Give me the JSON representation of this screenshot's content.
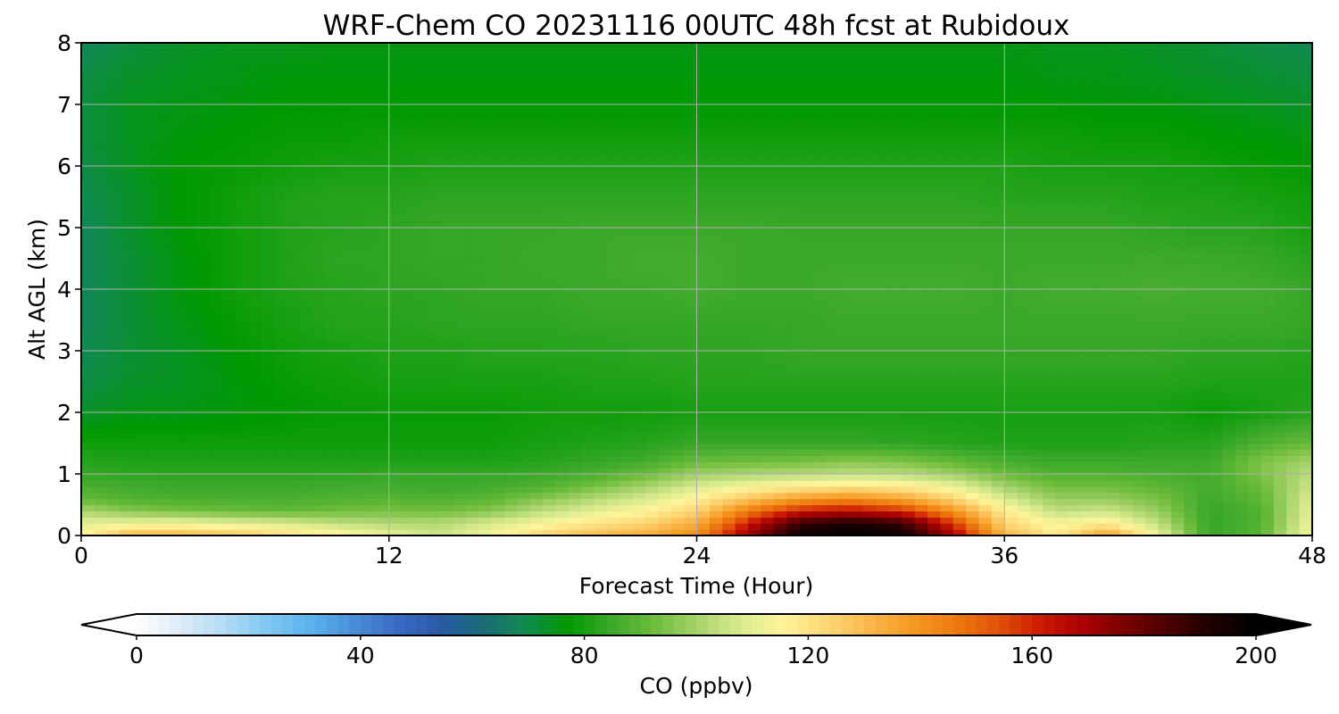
{
  "chart_data": {
    "type": "heatmap",
    "title": "WRF-Chem CO  20231116 00UTC 48h fcst at Rubidoux",
    "xlabel": "Forecast Time (Hour)",
    "ylabel": "Alt AGL (km)",
    "xlim": [
      0,
      48
    ],
    "ylim": [
      0,
      8
    ],
    "x_ticks": [
      0,
      12,
      24,
      36,
      48
    ],
    "y_ticks": [
      0,
      1,
      2,
      3,
      4,
      5,
      6,
      7,
      8
    ],
    "grid": true,
    "colorbar": {
      "label": "CO  (ppbv)",
      "range": [
        0,
        200
      ],
      "ticks": [
        0,
        40,
        80,
        120,
        160,
        200
      ],
      "extend": "both",
      "colors": [
        "#ffffff",
        "#dcecf8",
        "#b3dcf4",
        "#83c8f2",
        "#5ab4ee",
        "#4a90d8",
        "#3a6cc4",
        "#2a5aa8",
        "#1a6a78",
        "#118a50",
        "#009900",
        "#3aa82a",
        "#6cbc3a",
        "#a6d26a",
        "#d8ea8e",
        "#fff59a",
        "#fdd878",
        "#fbb84c",
        "#f59a22",
        "#ee7a10",
        "#e05408",
        "#cc1a00",
        "#a80000",
        "#780000",
        "#480000",
        "#1e0000",
        "#000000"
      ]
    },
    "x": [
      0,
      2,
      4,
      6,
      8,
      10,
      12,
      14,
      16,
      18,
      20,
      22,
      24,
      26,
      28,
      30,
      32,
      34,
      36,
      38,
      40,
      42,
      44,
      46,
      48
    ],
    "y": [
      0,
      0.2,
      0.4,
      0.6,
      0.8,
      1,
      1.2,
      1.5,
      2,
      2.5,
      3,
      3.5,
      4,
      4.5,
      5,
      5.5,
      6,
      6.5,
      7,
      7.5,
      8
    ],
    "z": [
      [
        115,
        133,
        132,
        128,
        122,
        118,
        112,
        106,
        114,
        124,
        130,
        134,
        142,
        172,
        198,
        200,
        198,
        170,
        132,
        118,
        138,
        112,
        84,
        90,
        115
      ],
      [
        110,
        112,
        112,
        110,
        108,
        104,
        102,
        102,
        108,
        114,
        120,
        124,
        134,
        162,
        188,
        194,
        188,
        158,
        124,
        114,
        118,
        104,
        84,
        88,
        113
      ],
      [
        101,
        96,
        94,
        92,
        91,
        93,
        94,
        93,
        96,
        104,
        110,
        116,
        124,
        146,
        162,
        166,
        160,
        140,
        118,
        104,
        106,
        98,
        84,
        88,
        111
      ],
      [
        91,
        88,
        87,
        87,
        87,
        88,
        89,
        88,
        90,
        96,
        102,
        108,
        117,
        128,
        138,
        142,
        136,
        124,
        108,
        98,
        98,
        94,
        85,
        90,
        109
      ],
      [
        87,
        86,
        85,
        85,
        85,
        86,
        86,
        85,
        86,
        88,
        94,
        100,
        108,
        114,
        118,
        120,
        118,
        112,
        100,
        93,
        93,
        90,
        86,
        92,
        106
      ],
      [
        84,
        83,
        83,
        83,
        83,
        83,
        84,
        84,
        84,
        85,
        87,
        92,
        99,
        101,
        102,
        104,
        103,
        99,
        92,
        88,
        88,
        87,
        86,
        94,
        104
      ],
      [
        82,
        81,
        81,
        81,
        81,
        81,
        81,
        81,
        81,
        82,
        84,
        86,
        92,
        93,
        94,
        96,
        95,
        91,
        87,
        85,
        85,
        85,
        85,
        95,
        100
      ],
      [
        79,
        79,
        79,
        79,
        79,
        79,
        79,
        79,
        79,
        80,
        81,
        82,
        84,
        84,
        84,
        84,
        83,
        82,
        81,
        81,
        81,
        82,
        82,
        88,
        92
      ],
      [
        73,
        75,
        75,
        76,
        77,
        78,
        78,
        78,
        78,
        79,
        79,
        79,
        80,
        80,
        80,
        80,
        80,
        80,
        80,
        80,
        80,
        80,
        78,
        80,
        82
      ],
      [
        70,
        73,
        74,
        76,
        78,
        79,
        80,
        80,
        80,
        80,
        81,
        81,
        82,
        82,
        82,
        82,
        82,
        82,
        82,
        82,
        82,
        82,
        81,
        81,
        81
      ],
      [
        69,
        72,
        74,
        77,
        79,
        80,
        81,
        81,
        82,
        82,
        82,
        83,
        83,
        83,
        84,
        84,
        84,
        84,
        84,
        84,
        84,
        84,
        83,
        83,
        82
      ],
      [
        68,
        72,
        75,
        78,
        80,
        82,
        82,
        83,
        83,
        83,
        84,
        84,
        84,
        84,
        84,
        85,
        85,
        85,
        85,
        85,
        85,
        85,
        85,
        85,
        84
      ],
      [
        68,
        72,
        76,
        79,
        81,
        82,
        83,
        83,
        84,
        84,
        85,
        85,
        86,
        85,
        85,
        86,
        86,
        86,
        85,
        86,
        86,
        87,
        86,
        86,
        84
      ],
      [
        68,
        72,
        76,
        79,
        81,
        83,
        83,
        84,
        84,
        85,
        85,
        86,
        86,
        85,
        85,
        85,
        85,
        85,
        85,
        85,
        85,
        85,
        85,
        84,
        82
      ],
      [
        68,
        73,
        77,
        79,
        81,
        82,
        83,
        84,
        84,
        84,
        85,
        85,
        85,
        85,
        84,
        84,
        84,
        84,
        84,
        84,
        84,
        83,
        82,
        82,
        80
      ],
      [
        69,
        73,
        77,
        79,
        81,
        82,
        82,
        83,
        83,
        83,
        83,
        83,
        83,
        83,
        83,
        83,
        83,
        83,
        82,
        82,
        82,
        81,
        81,
        80,
        79
      ],
      [
        70,
        74,
        77,
        78,
        79,
        80,
        80,
        81,
        81,
        81,
        81,
        81,
        81,
        81,
        81,
        81,
        81,
        81,
        81,
        80,
        80,
        80,
        79,
        78,
        77
      ],
      [
        71,
        74,
        76,
        77,
        78,
        78,
        79,
        79,
        79,
        79,
        79,
        79,
        79,
        79,
        79,
        79,
        79,
        79,
        79,
        79,
        78,
        78,
        77,
        76,
        75
      ],
      [
        71,
        74,
        75,
        76,
        77,
        77,
        77,
        77,
        77,
        77,
        77,
        77,
        77,
        77,
        77,
        77,
        77,
        77,
        77,
        77,
        76,
        76,
        75,
        74,
        73
      ],
      [
        70,
        73,
        74,
        75,
        76,
        76,
        76,
        76,
        76,
        76,
        76,
        76,
        76,
        76,
        76,
        76,
        76,
        76,
        76,
        75,
        75,
        74,
        73,
        72,
        71
      ],
      [
        68,
        71,
        73,
        74,
        74,
        75,
        75,
        75,
        75,
        75,
        75,
        75,
        75,
        75,
        75,
        75,
        75,
        75,
        75,
        74,
        74,
        73,
        72,
        70,
        69
      ]
    ]
  }
}
